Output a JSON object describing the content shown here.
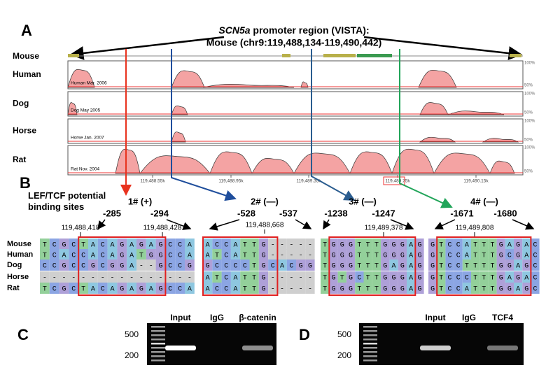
{
  "panels": {
    "a": "A",
    "b": "B",
    "c": "C",
    "d": "D"
  },
  "vista": {
    "title_gene": "SCN5a",
    "title_rest": " promoter region (VISTA):",
    "subtitle": "Mouse (chr9:119,488,134-119,490,442)",
    "reference": "Mouse",
    "tracks": [
      {
        "species": "Human",
        "label": "Human Mar. 2006",
        "top": "100%",
        "bottom": "50%"
      },
      {
        "species": "Dog",
        "label": "Dog May 2005",
        "top": "100%",
        "bottom": "50%"
      },
      {
        "species": "Horse",
        "label": "Horse Jan. 2007",
        "top": "100%",
        "bottom": "50%"
      },
      {
        "species": "Rat",
        "label": "Rat Nov. 2004",
        "top": "100%",
        "bottom": "50%"
      }
    ],
    "axis_labels": [
      "119,488.55k",
      "119,488.95k",
      "119,489.35k",
      "119,489.75k",
      "119,490.15k"
    ]
  },
  "binding": {
    "title": "LEF/TCF potential binding sites",
    "species": [
      "Mouse",
      "Human",
      "Dog",
      "Horse",
      "Rat"
    ],
    "sites": [
      {
        "name": "1# (+)",
        "left": "-285",
        "right": "-294",
        "coords": [
          "119,488,418",
          "119,488,428"
        ],
        "rows": [
          "TCGCTACAGAGAGCCA",
          "TCACCACAGATGGCCA",
          "CCGCCGCGGA--GCCG",
          "----------------",
          "TCGCTACAGAGAGCCA"
        ]
      },
      {
        "name": "2# (—)",
        "left": "-528",
        "right": "-537",
        "coords": [
          "119,488,668"
        ],
        "rows": [
          "ACCATTG-----",
          "ATCATTG-----",
          "GCCCCTGCACGG",
          "ATCATTG-----",
          "ACCATTG-----"
        ]
      },
      {
        "name": "3# (—)",
        "left": "-1238",
        "right": "-1247",
        "coords": [
          "119,489,378"
        ],
        "rows": [
          "TGGGTTTGGGAG",
          "TGGGTTTGGGAG",
          "TGGGTTTGAGAG",
          "TGTGCTTGGGAG",
          "TGGGTTTGGGAG"
        ]
      },
      {
        "name": "4# (—)",
        "left": "-1671",
        "right": "-1680",
        "coords": [
          "119,489,808"
        ],
        "rows": [
          "GTCCATTTGAGAC",
          "GTCCATTTGCGAC",
          "GTCCTTTTGGAGC",
          "GTCCCTTTGAGAC",
          "GTCCATTTGGAGC"
        ]
      }
    ]
  },
  "gels": [
    {
      "markers": [
        "500",
        "200"
      ],
      "lanes": [
        "Input",
        "IgG",
        "β-catenin"
      ]
    },
    {
      "markers": [
        "500",
        "200"
      ],
      "lanes": [
        "Input",
        "IgG",
        "TCF4"
      ]
    }
  ]
}
